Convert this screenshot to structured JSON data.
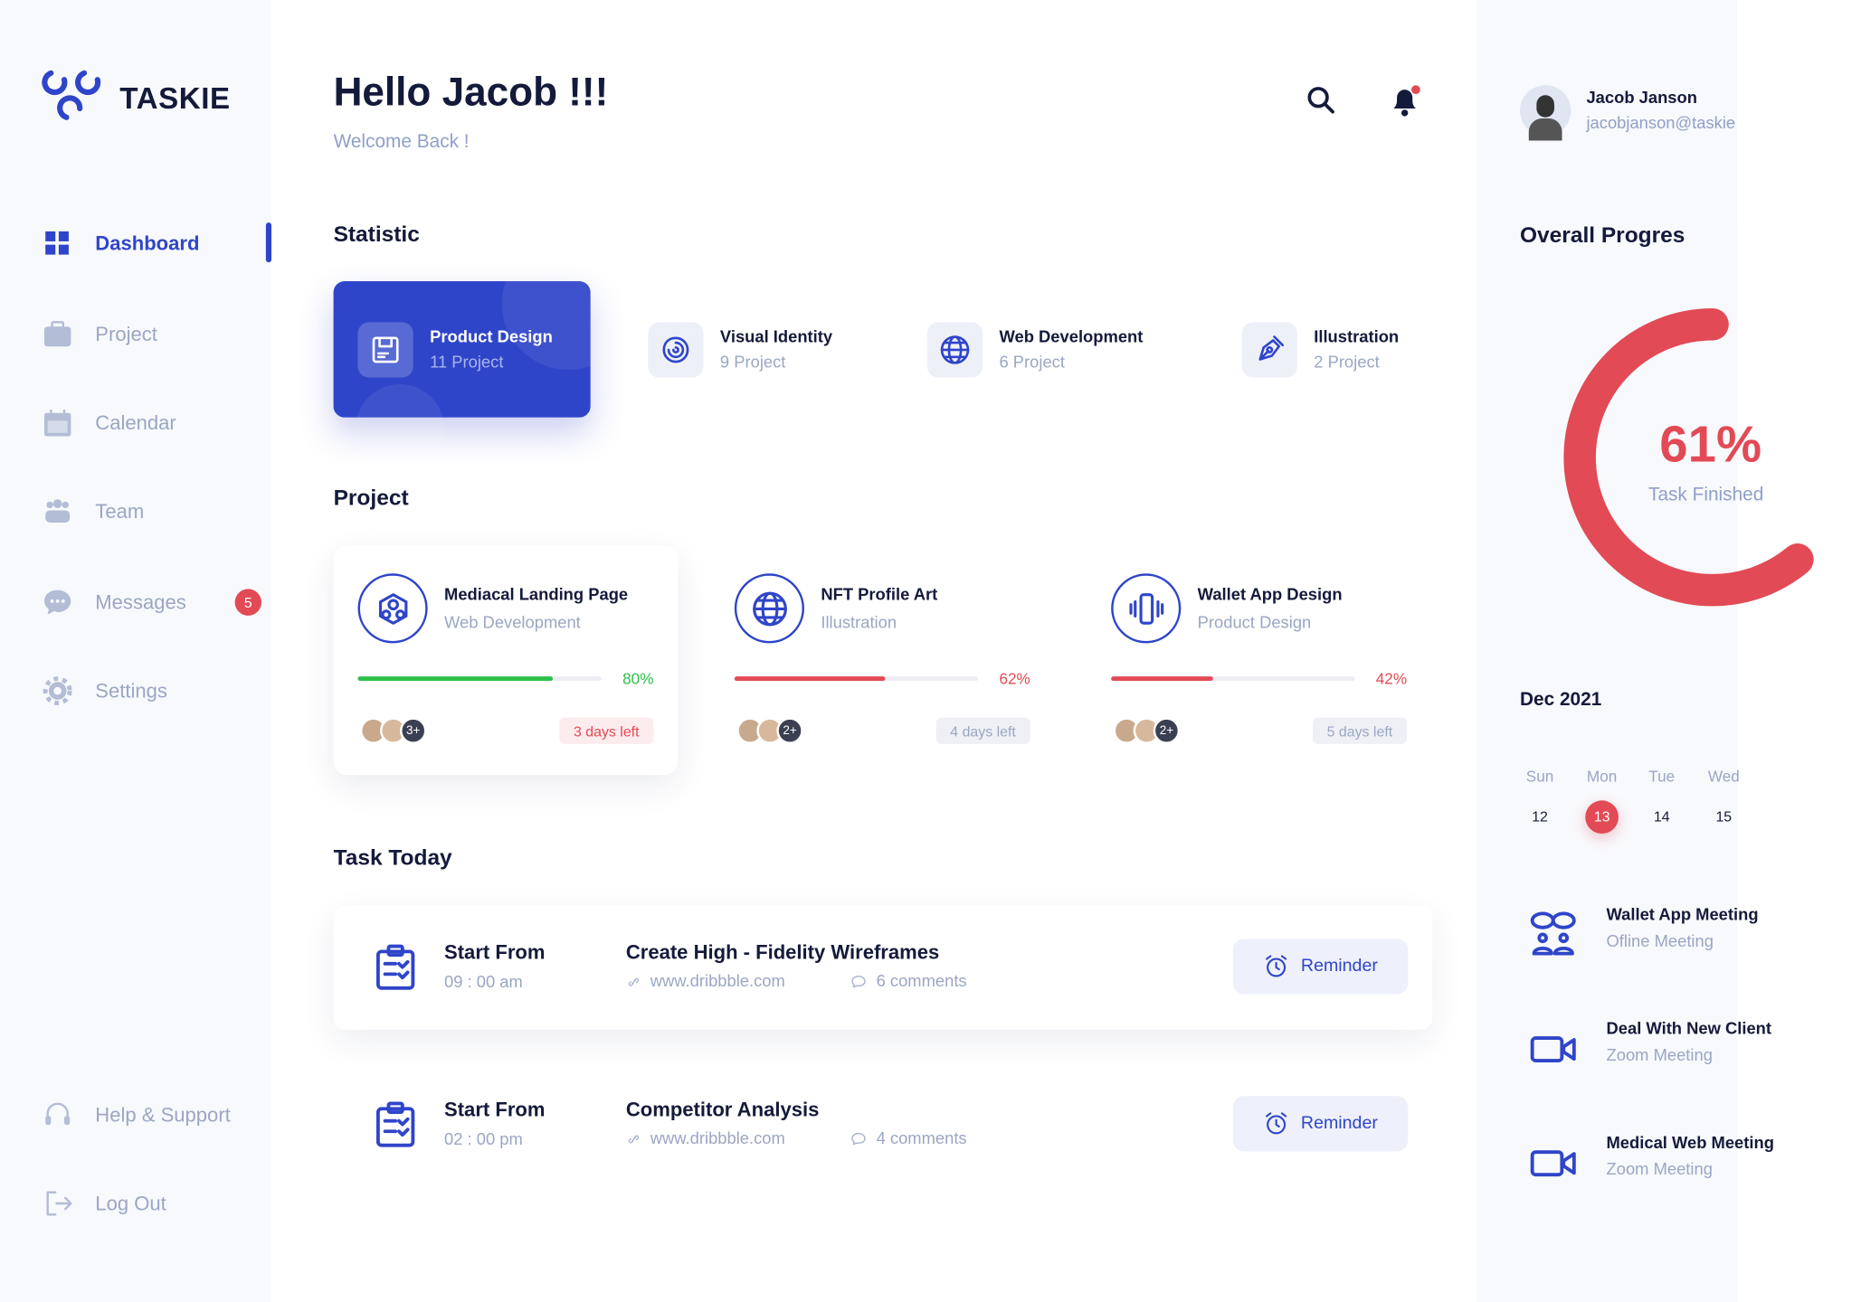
{
  "app": {
    "name": "TASKIE"
  },
  "colors": {
    "accent": "#2f45c9",
    "danger": "#e24a55",
    "success": "#2ec04a"
  },
  "sidebar": {
    "items": [
      {
        "label": "Dashboard",
        "icon": "grid-icon",
        "active": true
      },
      {
        "label": "Project",
        "icon": "briefcase-icon"
      },
      {
        "label": "Calendar",
        "icon": "calendar-icon"
      },
      {
        "label": "Team",
        "icon": "team-icon"
      },
      {
        "label": "Messages",
        "icon": "chat-icon",
        "badge": "5"
      },
      {
        "label": "Settings",
        "icon": "gear-icon"
      }
    ],
    "bottom": [
      {
        "label": "Help & Support",
        "icon": "headset-icon"
      },
      {
        "label": "Log Out",
        "icon": "logout-icon"
      }
    ]
  },
  "header": {
    "greeting": "Hello Jacob !!!",
    "subtitle": "Welcome Back !"
  },
  "user": {
    "name": "Jacob Janson",
    "email": "jacobjanson@taskie"
  },
  "statistic": {
    "title": "Statistic",
    "items": [
      {
        "title": "Product Design",
        "count": "11 Project",
        "icon": "save-icon",
        "selected": true
      },
      {
        "title": "Visual Identity",
        "count": "9 Project",
        "icon": "spiral-icon"
      },
      {
        "title": "Web Development",
        "count": "6 Project",
        "icon": "globe-icon"
      },
      {
        "title": "Illustration",
        "count": "2 Project",
        "icon": "pen-tool-icon"
      }
    ]
  },
  "projects": {
    "title": "Project",
    "items": [
      {
        "title": "Mediacal Landing Page",
        "category": "Web Development",
        "progress": 80,
        "progress_label": "80%",
        "extra_members": "3+",
        "days_left": "3 days left",
        "icon": "network-icon",
        "color": "#2ec04a",
        "urgent": true
      },
      {
        "title": "NFT Profile Art",
        "category": "Illustration",
        "progress": 62,
        "progress_label": "62%",
        "extra_members": "2+",
        "days_left": "4 days left",
        "icon": "globe-icon",
        "color": "#e24a55"
      },
      {
        "title": "Wallet App Design",
        "category": "Product Design",
        "progress": 42,
        "progress_label": "42%",
        "extra_members": "2+",
        "days_left": "5 days left",
        "icon": "phone-vibrate-icon",
        "color": "#e24a55"
      }
    ]
  },
  "tasks": {
    "title": "Task Today",
    "items": [
      {
        "start_label": "Start From",
        "time": "09 : 00 am",
        "title": "Create High - Fidelity Wireframes",
        "link": "www.dribbble.com",
        "comments": "6 comments",
        "button": "Reminder"
      },
      {
        "start_label": "Start From",
        "time": "02 : 00 pm",
        "title": "Competitor Analysis",
        "link": "www.dribbble.com",
        "comments": "4 comments",
        "button": "Reminder"
      }
    ]
  },
  "overall": {
    "title": "Overall Progres",
    "percent": 61,
    "percent_label": "61%",
    "caption": "Task Finished"
  },
  "calendar": {
    "month": "Dec 2021",
    "days": [
      {
        "name": "Sun",
        "date": "12"
      },
      {
        "name": "Mon",
        "date": "13",
        "selected": true
      },
      {
        "name": "Tue",
        "date": "14"
      },
      {
        "name": "Wed",
        "date": "15"
      }
    ]
  },
  "meetings": [
    {
      "title": "Wallet App Meeting",
      "type": "Ofline Meeting",
      "icon": "people-chat-icon"
    },
    {
      "title": "Deal With New Client",
      "type": "Zoom Meeting",
      "icon": "video-icon"
    },
    {
      "title": "Medical Web Meeting",
      "type": "Zoom Meeting",
      "icon": "video-icon"
    }
  ]
}
